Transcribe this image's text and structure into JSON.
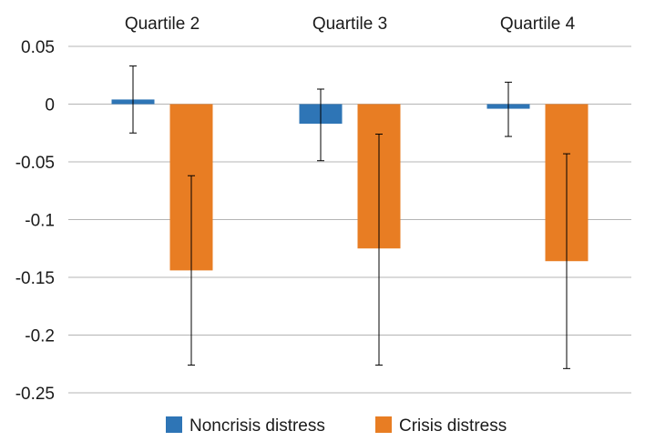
{
  "chart_data": {
    "type": "bar",
    "categories": [
      "Quartile 2",
      "Quartile 3",
      "Quartile 4"
    ],
    "series": [
      {
        "name": "Noncrisis distress",
        "color": "#2e75b6",
        "values": [
          0.004,
          -0.017,
          -0.004
        ],
        "error_low": [
          -0.025,
          -0.049,
          -0.028
        ],
        "error_high": [
          0.033,
          0.013,
          0.019
        ]
      },
      {
        "name": "Crisis distress",
        "color": "#e87d23",
        "values": [
          -0.144,
          -0.125,
          -0.136
        ],
        "error_low": [
          -0.226,
          -0.226,
          -0.229
        ],
        "error_high": [
          -0.062,
          -0.026,
          -0.043
        ]
      }
    ],
    "yticks": [
      "0.05",
      "0",
      "-0.05",
      "-0.1",
      "-0.15",
      "-0.2",
      "-0.25"
    ],
    "ylim": [
      -0.25,
      0.05
    ],
    "grid": true,
    "category_label_position": "top",
    "legend_position": "bottom"
  }
}
